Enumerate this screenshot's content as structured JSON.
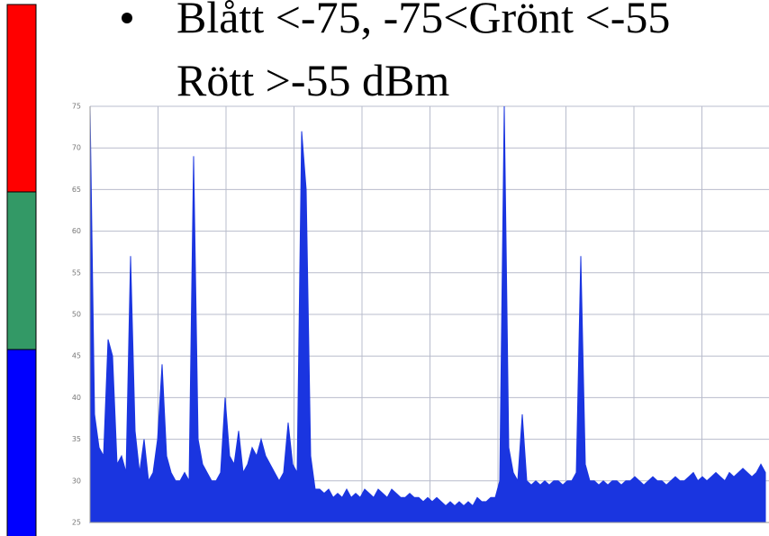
{
  "slide": {
    "bullet_lines": [
      "Blått <-75, -75<Grönt <-55",
      "Rött >-55 dBm"
    ]
  },
  "chart_data": {
    "type": "area",
    "color": "#1a35e0",
    "grid": true,
    "ylim": [
      25,
      75
    ],
    "yticks": [
      25,
      30,
      35,
      40,
      45,
      50,
      55,
      60,
      65,
      70,
      75
    ],
    "values": [
      75,
      38,
      34,
      33,
      47,
      45,
      32,
      33,
      31,
      57,
      36,
      31,
      35,
      30,
      31,
      35,
      44,
      33,
      31,
      30,
      30,
      31,
      30,
      69,
      35,
      32,
      31,
      30,
      30,
      31,
      40,
      33,
      32,
      36,
      31,
      32,
      34,
      33,
      35,
      33,
      32,
      31,
      30,
      31,
      37,
      32,
      31,
      72,
      65,
      33,
      29,
      29,
      28.5,
      29,
      28,
      28.5,
      28,
      29,
      28,
      28.5,
      28,
      29,
      28.5,
      28,
      29,
      28.5,
      28,
      29,
      28.5,
      28,
      28,
      28.5,
      28,
      28,
      27.5,
      28,
      27.5,
      28,
      27.5,
      27,
      27.5,
      27,
      27.5,
      27,
      27.5,
      27,
      28,
      27.5,
      27.5,
      28,
      28,
      30,
      75,
      34,
      31,
      30,
      38,
      30,
      29.5,
      30,
      29.5,
      30,
      29.5,
      30,
      30,
      29.5,
      30,
      30,
      31,
      57,
      32,
      30,
      30,
      29.5,
      30,
      29.5,
      30,
      30,
      29.5,
      30,
      30,
      30.5,
      30,
      29.5,
      30,
      30.5,
      30,
      30,
      29.5,
      30,
      30.5,
      30,
      30,
      30.5,
      31,
      30,
      30.5,
      30,
      30.5,
      31,
      30.5,
      30,
      31,
      30.5,
      31,
      31.5,
      31,
      30.5,
      31,
      32,
      31
    ]
  }
}
